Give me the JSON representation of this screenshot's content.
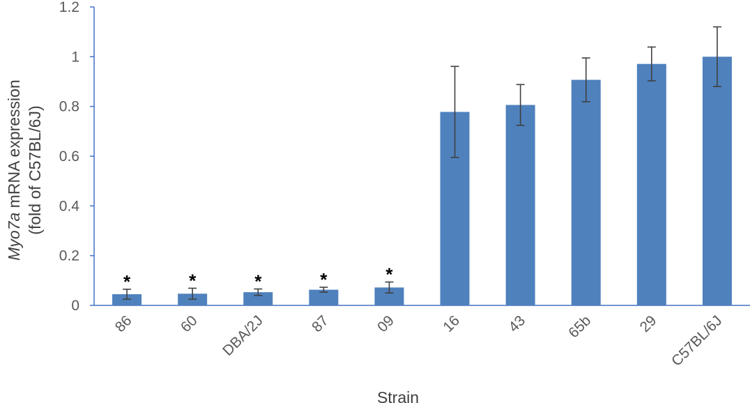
{
  "chart_data": {
    "type": "bar",
    "categories": [
      "86",
      "60",
      "DBA/2J",
      "87",
      "09",
      "16",
      "43",
      "65b",
      "29",
      "C57BL/6J"
    ],
    "series": [
      {
        "values": [
          0.045,
          0.047,
          0.053,
          0.063,
          0.072,
          0.778,
          0.806,
          0.907,
          0.971,
          1.0
        ],
        "error": [
          0.02,
          0.022,
          0.013,
          0.01,
          0.022,
          0.183,
          0.082,
          0.088,
          0.068,
          0.12
        ]
      }
    ],
    "significance": [
      "*",
      "*",
      "*",
      "*",
      "*",
      "",
      "",
      "",
      "",
      ""
    ],
    "xlabel": "Strain",
    "ylabel_line1_italic": "Myo7a",
    "ylabel_line1_rest": " mRNA expression",
    "ylabel_line2": "(fold of C57BL/6J)",
    "ylim": [
      0,
      1.2
    ],
    "yticks": [
      0,
      0.2,
      0.4,
      0.6,
      0.8,
      1,
      1.2
    ],
    "ytick_labels": [
      "0",
      "0.2",
      "0.4",
      "0.6",
      "0.8",
      "1",
      "1.2"
    ],
    "grid": false,
    "legend": "none",
    "colors": {
      "bar": "#4f81bd",
      "axis": "#4472c4",
      "errorbar": "#404040",
      "tick_text": "#595959"
    }
  }
}
